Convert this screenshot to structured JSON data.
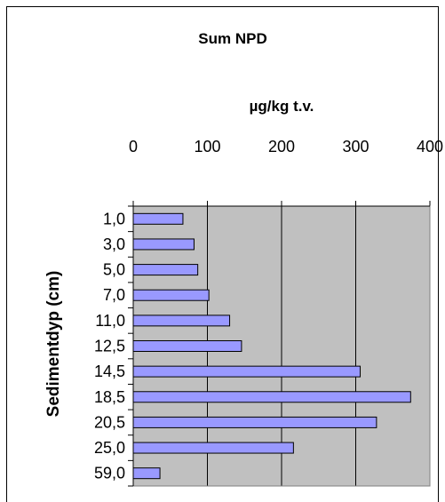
{
  "chart_data": {
    "type": "bar",
    "orientation": "horizontal",
    "title": "Sum NPD",
    "xlabel": "µg/kg t.v.",
    "ylabel": "Sedimentdyp (cm)",
    "x_axis_position": "top",
    "xlim": [
      0,
      400
    ],
    "xticks": [
      "0",
      "100",
      "200",
      "300",
      "400"
    ],
    "categories": [
      "1,0",
      "3,0",
      "5,0",
      "7,0",
      "11,0",
      "12,5",
      "14,5",
      "18,5",
      "20,5",
      "25,0",
      "59,0"
    ],
    "values": [
      67,
      82,
      87,
      102,
      130,
      146,
      306,
      374,
      328,
      216,
      36
    ],
    "grid": "vertical",
    "legend": "none",
    "colors": {
      "bar_fill": "#9999ff",
      "bar_stroke": "#000000",
      "plot_area": "#c0c0c0",
      "background": "#ffffff"
    }
  }
}
